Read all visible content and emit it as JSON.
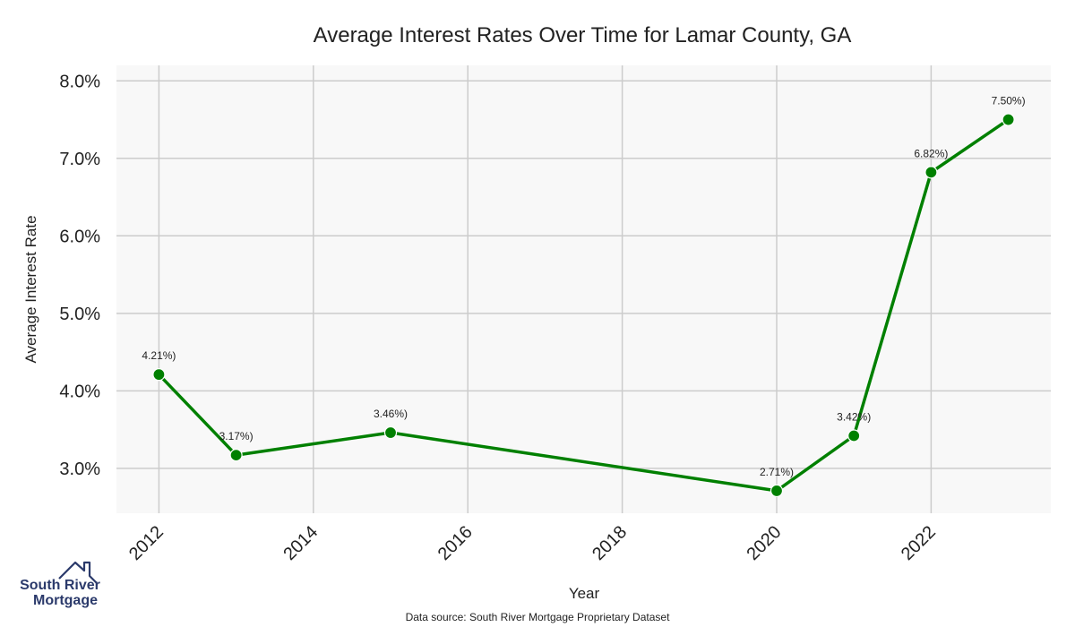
{
  "chart_data": {
    "type": "line",
    "title": "Average Interest Rates Over Time for Lamar County, GA",
    "xlabel": "Year",
    "ylabel": "Average Interest Rate",
    "source": "Data source: South River Mortgage Proprietary Dataset",
    "x": [
      2012,
      2013,
      2015,
      2020,
      2021,
      2022,
      2023
    ],
    "series": [
      {
        "values": [
          4.21,
          3.17,
          3.46,
          2.71,
          3.42,
          6.82,
          7.5
        ],
        "labels": [
          "4.21%)",
          "3.17%)",
          "3.46%)",
          "2.71%)",
          "3.42%)",
          "6.82%)",
          "7.50%)"
        ],
        "color": "#008000"
      }
    ],
    "xlim": [
      2011.45,
      2023.55
    ],
    "ylim": [
      2.42,
      8.2
    ],
    "xticks": [
      2012,
      2014,
      2016,
      2018,
      2020,
      2022
    ],
    "xtick_labels": [
      "2012",
      "2014",
      "2016",
      "2018",
      "2020",
      "2022"
    ],
    "yticks": [
      3.0,
      4.0,
      5.0,
      6.0,
      7.0,
      8.0
    ],
    "ytick_labels": [
      "3.0%",
      "4.0%",
      "5.0%",
      "6.0%",
      "7.0%",
      "8.0%"
    ],
    "grid": true,
    "background_color": "#f8f8f8",
    "grid_color": "#cccccc"
  },
  "logo": {
    "line1": "South River",
    "line2": "Mortgage",
    "color": "#2b3a6b",
    "icon": "house-roof-icon"
  }
}
